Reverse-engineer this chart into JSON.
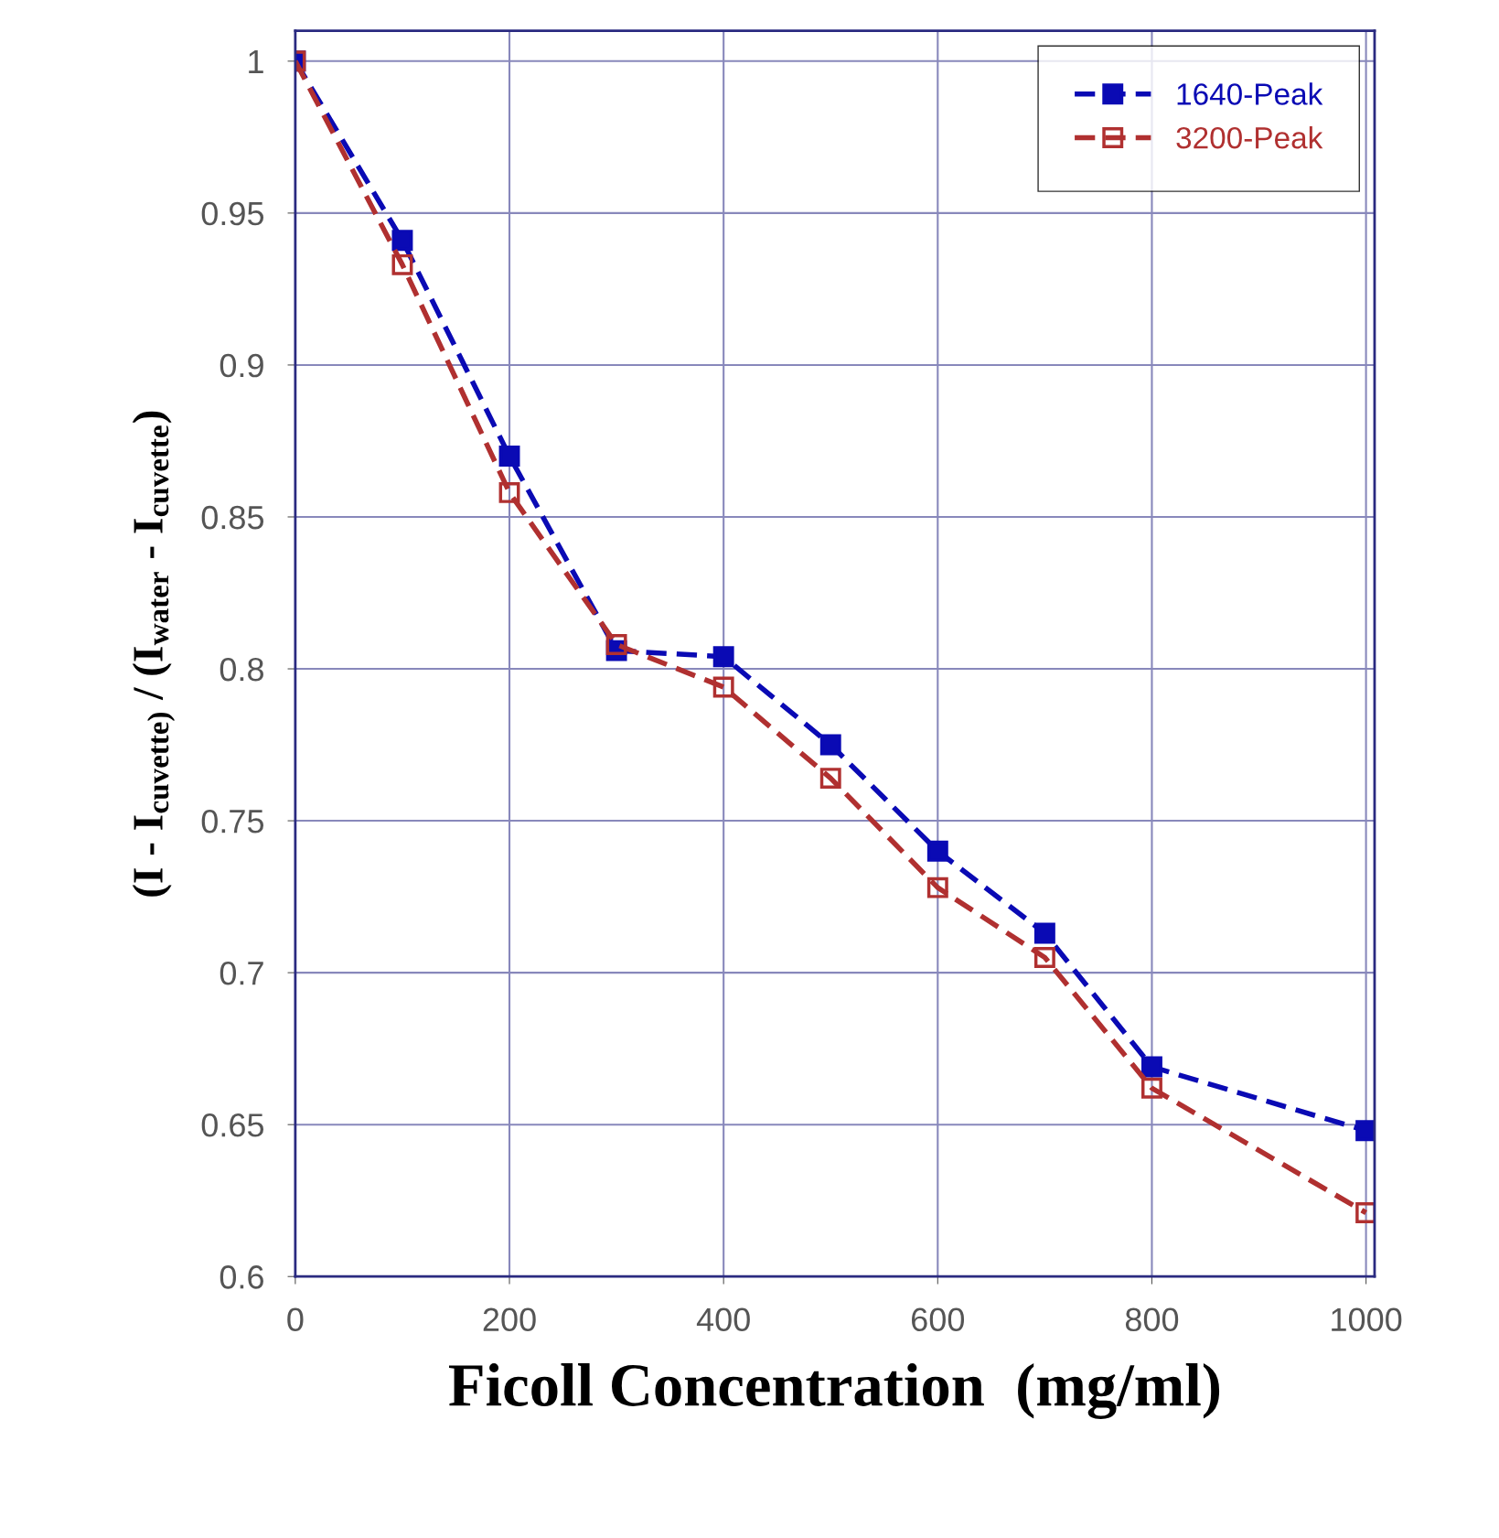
{
  "chart_data": {
    "type": "line",
    "xlabel": "Ficoll Concentration  (mg/ml)",
    "ylabel": "(I - I$_{cuvette)}$ / (I$_{water}$ - I$_{cuvette}$)",
    "x": [
      0,
      100,
      200,
      300,
      400,
      500,
      600,
      700,
      800,
      1000
    ],
    "series": [
      {
        "name": "1640-Peak",
        "color": "#0a0ab4",
        "values": [
          1.0,
          0.941,
          0.87,
          0.806,
          0.804,
          0.775,
          0.74,
          0.713,
          0.669,
          0.648
        ]
      },
      {
        "name": "3200-Peak",
        "color": "#b03030",
        "values": [
          1.0,
          0.933,
          0.858,
          0.808,
          0.794,
          0.764,
          0.728,
          0.705,
          0.662,
          0.621
        ]
      }
    ],
    "xlim": [
      0,
      1008
    ],
    "ylim": [
      0.6,
      1.01
    ],
    "xticks": [
      0,
      200,
      400,
      600,
      800,
      1000
    ],
    "yticks": [
      0.6,
      0.65,
      0.7,
      0.75,
      0.8,
      0.85,
      0.9,
      0.95,
      1
    ],
    "grid": true,
    "legend": "top right",
    "marker": "square",
    "line_style": "dashed"
  }
}
